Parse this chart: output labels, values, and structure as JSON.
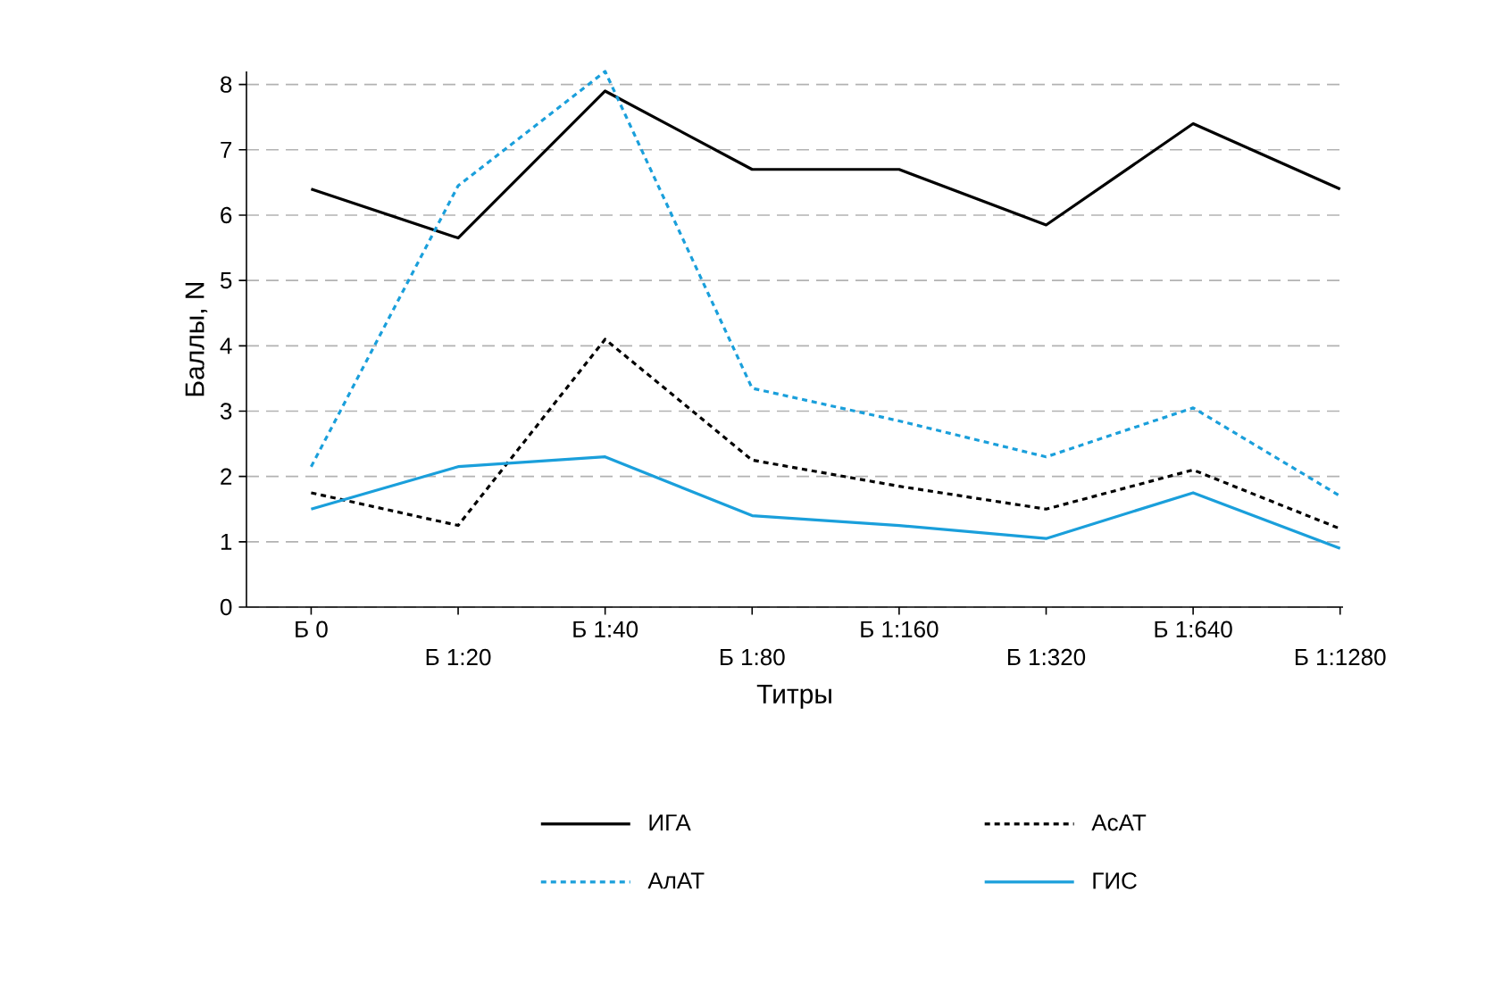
{
  "chart_data": {
    "type": "line",
    "xlabel": "Титры",
    "ylabel": "Баллы, N",
    "categories": [
      "Б 0",
      "Б 1:20",
      "Б 1:40",
      "Б 1:80",
      "Б 1:160",
      "Б 1:320",
      "Б 1:640",
      "Б 1:1280"
    ],
    "ylim": [
      0,
      8.2
    ],
    "yticks": [
      0,
      1,
      2,
      3,
      4,
      5,
      6,
      7,
      8
    ],
    "grid": "y",
    "legend": "bottom",
    "marker": "none",
    "series": [
      {
        "name": "ИГА",
        "color": "#000000",
        "line_style": "solid",
        "values": [
          6.4,
          5.65,
          7.9,
          6.7,
          6.7,
          5.85,
          7.4,
          6.4
        ]
      },
      {
        "name": "АсАТ",
        "color": "#000000",
        "line_style": "dotted",
        "values": [
          1.75,
          1.25,
          4.1,
          2.25,
          1.85,
          1.5,
          2.1,
          1.2
        ]
      },
      {
        "name": "АлАТ",
        "color": "#1a9fdb",
        "line_style": "dotted",
        "values": [
          2.15,
          6.45,
          8.2,
          3.35,
          2.85,
          2.3,
          3.05,
          1.7
        ]
      },
      {
        "name": "ГИС",
        "color": "#1a9fdb",
        "line_style": "solid",
        "values": [
          1.5,
          2.15,
          2.3,
          1.4,
          1.25,
          1.05,
          1.75,
          0.9
        ]
      }
    ]
  }
}
